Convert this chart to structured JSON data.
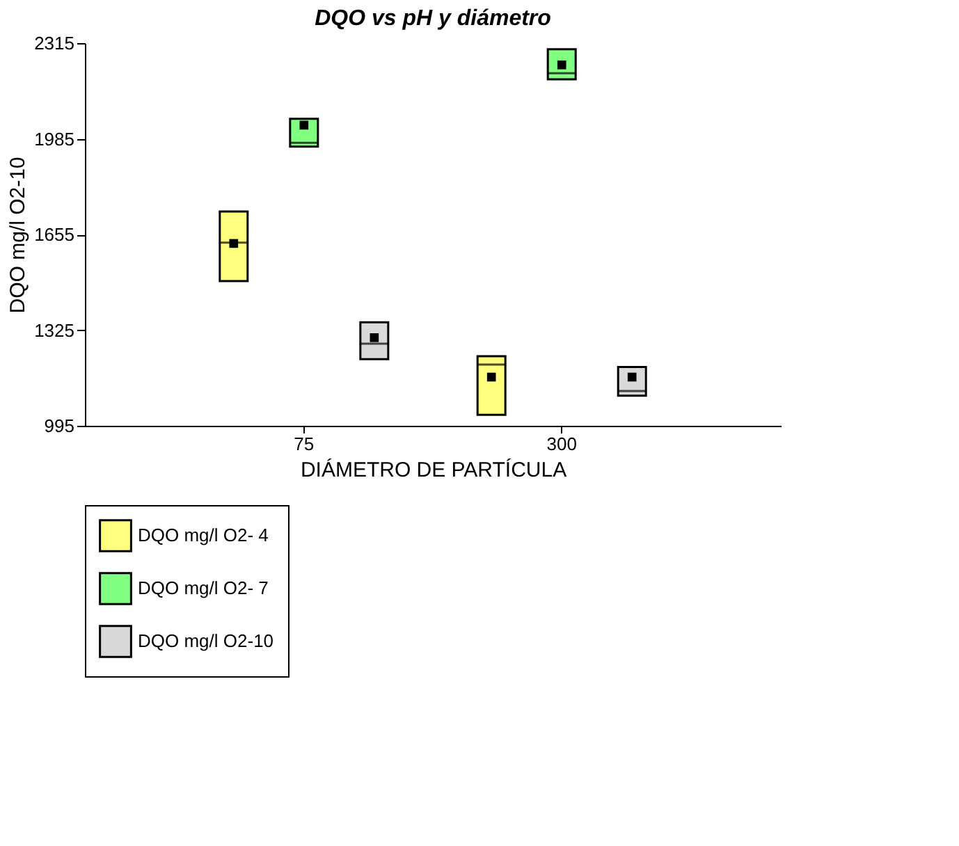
{
  "chart_data": {
    "type": "box",
    "title": "DQO vs pH y diámetro",
    "xlabel": "DIÁMETRO DE PARTÍCULA",
    "ylabel": "DQO mg/l O2-10",
    "categories": [
      "75",
      "300"
    ],
    "ylim": [
      995,
      2315
    ],
    "yticks": [
      995,
      1325,
      1655,
      1985,
      2315
    ],
    "grid": false,
    "legend": "bottom",
    "series": [
      {
        "name": "DQO mg/l O2- 4",
        "color": "#ffff80",
        "boxes": [
          {
            "low": 1494,
            "q1": 1494,
            "median": 1627,
            "q3": 1734,
            "high": 1734,
            "mean": 1624
          },
          {
            "low": 1033,
            "q1": 1033,
            "median": 1206,
            "q3": 1235,
            "high": 1235,
            "mean": 1163
          }
        ]
      },
      {
        "name": "DQO mg/l O2- 7",
        "color": "#80ff80",
        "boxes": [
          {
            "low": 1958,
            "q1": 1958,
            "median": 1971,
            "q3": 2054,
            "high": 2054,
            "mean": 2032
          },
          {
            "low": 2190,
            "q1": 2190,
            "median": 2211,
            "q3": 2294,
            "high": 2294,
            "mean": 2240
          }
        ]
      },
      {
        "name": "DQO mg/l O2-10",
        "color": "#d9d9d9",
        "boxes": [
          {
            "low": 1225,
            "q1": 1225,
            "median": 1278,
            "q3": 1352,
            "high": 1352,
            "mean": 1299
          },
          {
            "low": 1099,
            "q1": 1099,
            "median": 1115,
            "q3": 1198,
            "high": 1198,
            "mean": 1163
          }
        ]
      }
    ]
  }
}
